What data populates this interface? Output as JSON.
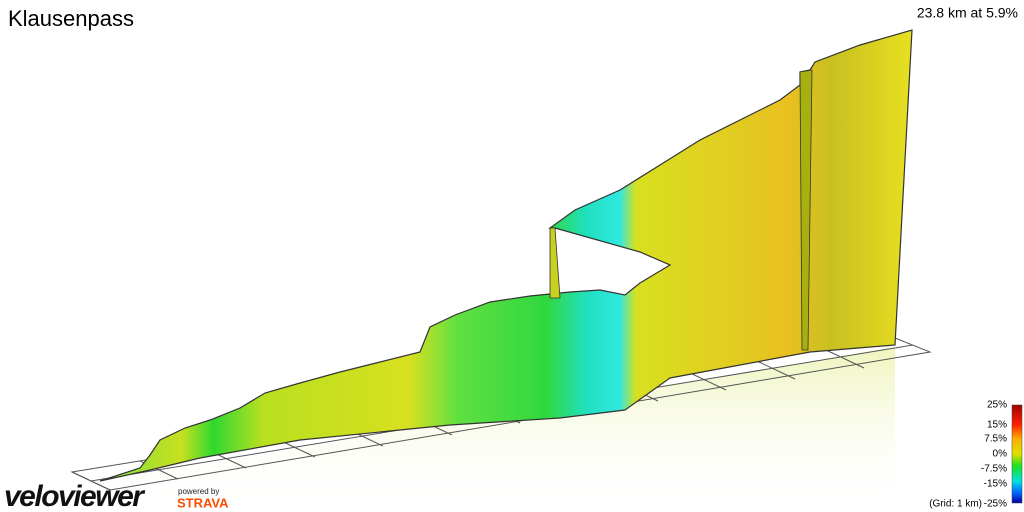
{
  "header": {
    "title": "Klausenpass",
    "summary": "23.8 km at 5.9%"
  },
  "legend": {
    "labels": [
      "25%",
      "15%",
      "7.5%",
      "0%",
      "-7.5%",
      "-15%",
      "-25%"
    ],
    "grid_note": "(Grid: 1 km)"
  },
  "branding": {
    "logo": "veloviewer",
    "powered_by": "powered by",
    "partner": "STRAVA"
  }
}
